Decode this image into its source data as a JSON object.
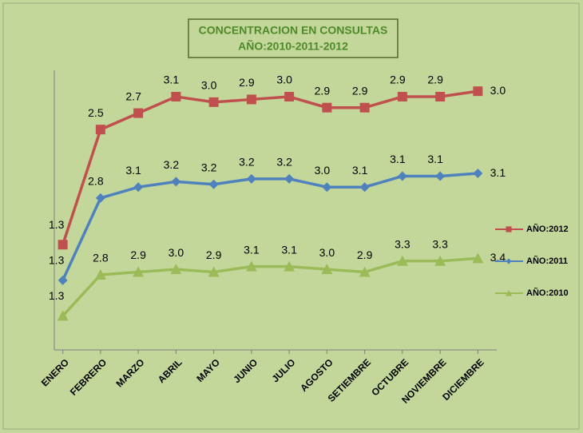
{
  "chart_data": {
    "type": "line",
    "stacked": true,
    "title": "CONCENTRACION EN CONSULTAS",
    "subtitle": "AÑO:2010-2011-2012",
    "categories": [
      "ENERO",
      "FEBRERO",
      "MARZO",
      "ABRIL",
      "MAYO",
      "JUNIO",
      "JULIO",
      "AGOSTO",
      "SETIEMBRE",
      "OCTUBRE",
      "NOVIEMBRE",
      "DICIEMBRE"
    ],
    "ylim": [
      0,
      10
    ],
    "series": [
      {
        "name": "AÑO:2012",
        "color": "#c0504d",
        "marker": "square",
        "values": [
          1.3,
          2.5,
          2.7,
          3.1,
          3.0,
          2.9,
          3.0,
          2.9,
          2.9,
          2.9,
          2.9,
          3.0
        ],
        "value_labels": [
          "1.3",
          "2.5",
          "2.7",
          "3.1",
          "3.0",
          "2.9",
          "3.0",
          "2.9",
          "2.9",
          "2.9",
          "2.9",
          "3.0"
        ]
      },
      {
        "name": "AÑO:2011",
        "color": "#4f81bd",
        "marker": "diamond",
        "values": [
          1.3,
          2.8,
          3.1,
          3.2,
          3.2,
          3.2,
          3.2,
          3.0,
          3.1,
          3.1,
          3.1,
          3.1
        ],
        "value_labels": [
          "1.3",
          "2.8",
          "3.1",
          "3.2",
          "3.2",
          "3.2",
          "3.2",
          "3.0",
          "3.1",
          "3.1",
          "3.1",
          "3.1"
        ]
      },
      {
        "name": "AÑO:2010",
        "color": "#9bbb59",
        "marker": "triangle",
        "values": [
          1.3,
          2.8,
          2.9,
          3.0,
          2.9,
          3.1,
          3.1,
          3.0,
          2.9,
          3.3,
          3.3,
          3.4
        ],
        "value_labels": [
          "1.3",
          "2.8",
          "2.9",
          "3.0",
          "2.9",
          "3.1",
          "3.1",
          "3.0",
          "2.9",
          "3.3",
          "3.3",
          "3.4"
        ]
      }
    ]
  }
}
